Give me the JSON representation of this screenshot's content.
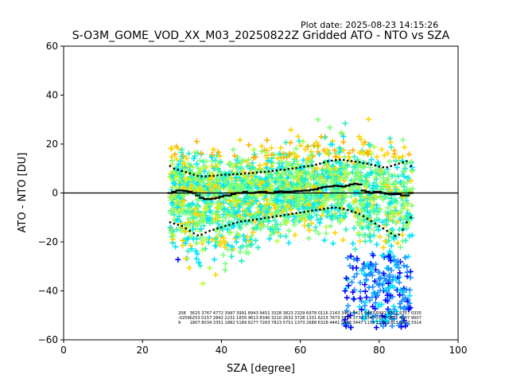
{
  "chart_data": {
    "type": "scatter",
    "plot_date": "Plot date: 2025-08-23 14:15:26",
    "title": "S-O3M_GOME_VOD_XX_M03_20250822Z Gridded ATO - NTO vs SZA",
    "xlabel": "SZA [degree]",
    "ylabel": "ATO - NTO [DU]",
    "xlim": [
      0,
      100
    ],
    "ylim": [
      -60,
      60
    ],
    "xticks": [
      "0",
      "20",
      "40",
      "60",
      "80",
      "100"
    ],
    "yticks": [
      "−60",
      "−40",
      "−20",
      "0",
      "20",
      "40",
      "60"
    ],
    "grid": false,
    "legend": "none",
    "zero_line": 0,
    "point_colors": {
      "blue": "#0000ff",
      "lightblue": "#1e90ff",
      "cyan": "#00e5ff",
      "aqua": "#29f0c0",
      "green": "#7dff7a",
      "lime": "#b4ff3a",
      "yellow": "#ffd400",
      "orange": "#ffb000"
    },
    "bin_x": [
      27,
      28,
      29,
      30,
      31,
      32,
      33,
      34,
      35,
      36,
      37,
      38,
      39,
      40,
      41,
      42,
      43,
      44,
      45,
      46,
      47,
      48,
      49,
      50,
      51,
      52,
      53,
      54,
      55,
      56,
      57,
      58,
      59,
      60,
      61,
      62,
      63,
      64,
      65,
      66,
      67,
      68,
      69,
      70,
      71,
      72,
      73,
      74,
      75,
      76,
      77,
      78,
      79,
      80,
      81,
      82,
      83,
      84,
      85,
      86,
      87,
      88
    ],
    "series": [
      {
        "name": "",
        "values": [
          0,
          0.5,
          1,
          1,
          0.8,
          0.5,
          0,
          -1,
          -2,
          -2.5,
          -2.5,
          -2.3,
          -2,
          -1.5,
          -1,
          -1,
          -0.5,
          0,
          0,
          0.5,
          0,
          0,
          0.3,
          0.5,
          0.5,
          0,
          0,
          0.5,
          0.7,
          0.5,
          0.5,
          0.6,
          0.8,
          0.8,
          1,
          1,
          1.3,
          1.5,
          2,
          2.4,
          2.6,
          2.7,
          3,
          2.8,
          2.6,
          3,
          3.5,
          3.8,
          3.5,
          1,
          0.5,
          0,
          0.5,
          0.5,
          0,
          -0.3,
          -0.6,
          -0.5,
          -0.5,
          -1,
          -1,
          0
        ]
      },
      {
        "name": "",
        "values": [
          11,
          10,
          9.5,
          9,
          8.5,
          8,
          7.5,
          7,
          6.8,
          6.8,
          7,
          7,
          7.2,
          7.4,
          7.5,
          7.5,
          7.6,
          7.7,
          7.8,
          8,
          8,
          8.2,
          8.4,
          8.5,
          8.6,
          8.8,
          9,
          9.2,
          9.5,
          9.5,
          9.8,
          10,
          10.2,
          10.5,
          10.8,
          11,
          11.2,
          11.6,
          12,
          12.5,
          13,
          13.2,
          13.4,
          13.6,
          13.5,
          13.2,
          13,
          12.8,
          12.6,
          12.2,
          12,
          11.6,
          11.2,
          10.8,
          10.5,
          10.5,
          11,
          11.5,
          12,
          12.5,
          13,
          11
        ]
      },
      {
        "name": "",
        "values": [
          -12,
          -12.5,
          -13,
          -13.5,
          -14.5,
          -15.5,
          -16.5,
          -17.3,
          -17,
          -16.2,
          -15.5,
          -15,
          -14.5,
          -14,
          -13.5,
          -13,
          -12.5,
          -12,
          -11.6,
          -11.4,
          -11.2,
          -11,
          -10.8,
          -10.5,
          -10.2,
          -10,
          -9.8,
          -9.5,
          -9.3,
          -9,
          -8.8,
          -8.5,
          -8.2,
          -8,
          -7.8,
          -7.5,
          -7.2,
          -7,
          -6.8,
          -6.5,
          -6.2,
          -6,
          -6,
          -6.2,
          -6.5,
          -7,
          -7.5,
          -8,
          -8.5,
          -9.5,
          -10.5,
          -11.5,
          -12.5,
          -13.5,
          -14.5,
          -15.5,
          -16.5,
          -17.5,
          -17,
          -15,
          -12,
          -10
        ]
      }
    ],
    "count_rows": [
      [
        "208",
        "3625",
        "3767",
        "4772",
        "3997",
        "3991",
        "8943",
        "9451",
        "3328",
        "3823",
        "2329",
        "6978",
        "0116",
        "2143",
        "3431",
        "5411",
        "6493",
        "5931",
        "4311",
        "6357",
        "0335"
      ],
      [
        "-0256",
        "0253",
        "0157",
        "2842",
        "2231",
        "1835",
        "9613",
        "8340",
        "3210",
        "2632",
        "3728",
        "1331",
        "6215",
        "7673",
        "3325",
        "3772",
        "3547",
        "7637",
        "0831",
        "4107",
        "9007"
      ],
      [
        "9",
        "1807",
        "8034",
        "3351",
        "1882",
        "5189",
        "6277",
        "7263",
        "7823",
        "5751",
        "1373",
        "2688",
        "6328",
        "4441",
        "5448",
        "3447",
        "1114",
        "1130",
        "0313",
        "0243",
        "3314"
      ]
    ]
  }
}
